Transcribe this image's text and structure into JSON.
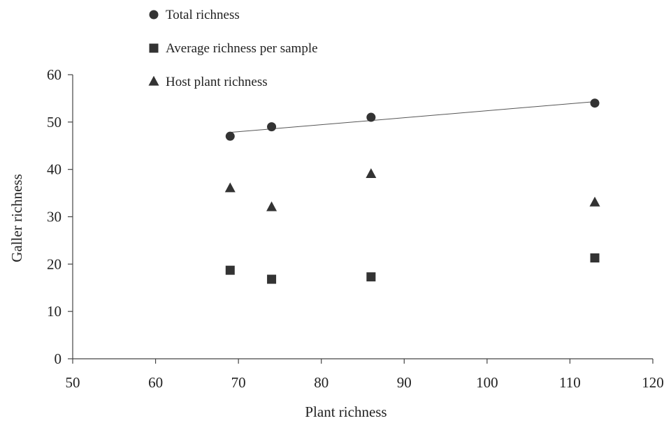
{
  "chart_data": {
    "type": "scatter",
    "title": "",
    "xlabel": "Plant richness",
    "ylabel": "Galler richness",
    "xlim": [
      50,
      120
    ],
    "ylim": [
      0,
      60
    ],
    "xticks": [
      "50",
      "60",
      "70",
      "80",
      "90",
      "100",
      "110",
      "120"
    ],
    "yticks": [
      "0",
      "10",
      "20",
      "30",
      "40",
      "50",
      "60"
    ],
    "grid": false,
    "legend_position": "top",
    "series": [
      {
        "name": "Total richness",
        "marker": "circle",
        "color": "#333333",
        "trendline": "linear",
        "x": [
          69,
          74,
          86,
          113
        ],
        "y": [
          47,
          49,
          51,
          54
        ]
      },
      {
        "name": "Average richness per sample",
        "marker": "square",
        "color": "#333333",
        "x": [
          69,
          74,
          86,
          113
        ],
        "y": [
          18.7,
          16.8,
          17.3,
          21.3
        ]
      },
      {
        "name": "Host plant richness",
        "marker": "triangle",
        "color": "#333333",
        "x": [
          69,
          74,
          86,
          113
        ],
        "y": [
          36,
          32,
          39,
          33
        ]
      }
    ]
  }
}
